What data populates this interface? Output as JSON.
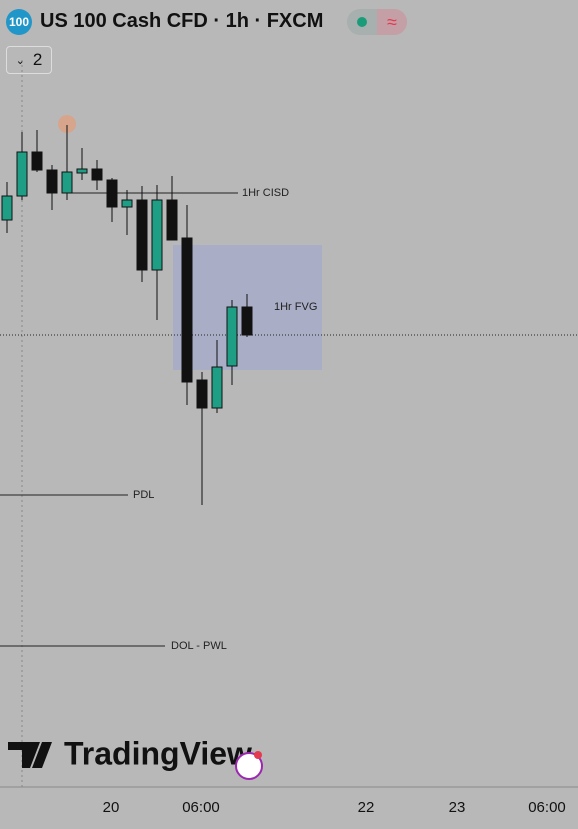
{
  "header": {
    "badge": "100",
    "title": "US 100 Cash CFD · 1h · FXCM",
    "collapse_count": "2"
  },
  "annotations": {
    "cisd": "1Hr CISD",
    "fvg": "1Hr FVG",
    "pdl": "PDL",
    "dol": "DOL - PWL"
  },
  "watermark": "TradingView",
  "time_axis": [
    "20",
    "06:00",
    "22",
    "23",
    "06:00"
  ]
}
